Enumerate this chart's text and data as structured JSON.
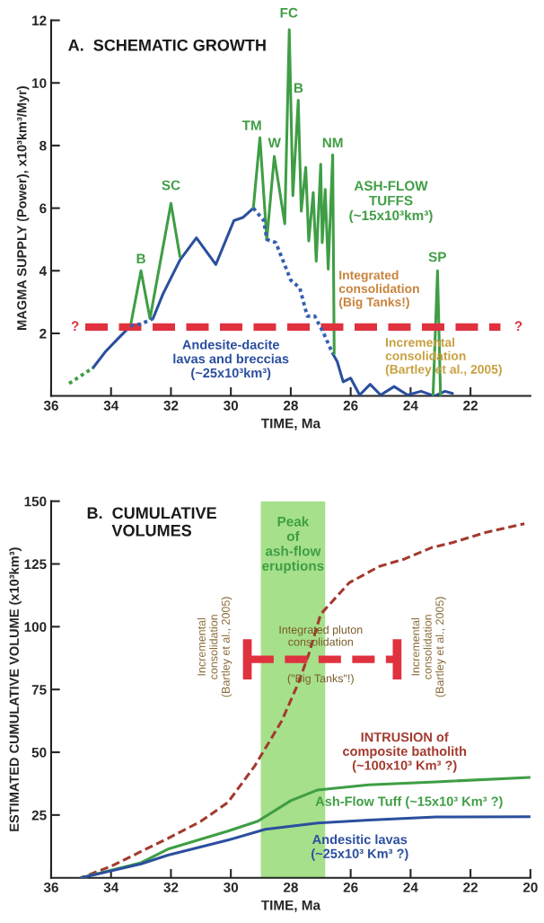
{
  "chart_data": [
    {
      "type": "line",
      "title": "A.  SCHEMATIC GROWTH",
      "xlabel": "TIME, Ma",
      "ylabel": "MAGMA SUPPLY (Power), x10³km³/Myr)",
      "xlim": [
        36,
        20
      ],
      "xticks": [
        36,
        34,
        32,
        30,
        28,
        26,
        24,
        22
      ],
      "ylim": [
        0,
        12
      ],
      "yticks": [
        2,
        4,
        6,
        8,
        10,
        12
      ],
      "series": [
        {
          "color": "#3f9e45",
          "line_style": "dotted",
          "x": [
            35.4,
            35.0,
            34.6
          ],
          "values": [
            0.4,
            0.65,
            0.9
          ]
        },
        {
          "color": "#2b4f9e",
          "line_style": "solid",
          "x": [
            34.6,
            34.2,
            33.8,
            33.35,
            33.0,
            32.6,
            32.27,
            31.7,
            31.15,
            30.5,
            29.9,
            29.6,
            29.25,
            28.0,
            26.6,
            26.45,
            26.25,
            26.0,
            25.7,
            25.35,
            25.0,
            24.55,
            24.1,
            23.65,
            23.2,
            22.85,
            22.6
          ],
          "values": [
            0.9,
            1.4,
            1.8,
            2.24,
            null,
            2.47,
            3.25,
            4.34,
            5.05,
            4.2,
            5.6,
            5.7,
            6.0,
            null,
            1.35,
            1.1,
            0.45,
            0.57,
            0.03,
            0.37,
            0.03,
            0.3,
            0.03,
            0.15,
            0,
            0.15,
            0.08
          ]
        },
        {
          "color": "#3560b0",
          "line_style": "dotted",
          "x": [
            33.35,
            33.0,
            32.6,
            31.0,
            29.25,
            28.9,
            28.8,
            28.5,
            28.0,
            27.7,
            27.45,
            27.2,
            26.9,
            26.6
          ],
          "values": [
            2.24,
            2.3,
            2.47,
            null,
            6.0,
            5.6,
            5.0,
            4.9,
            3.7,
            3.45,
            2.55,
            2.55,
            2.0,
            1.35
          ]
        },
        {
          "color": "#3f9e45",
          "line_style": "solid",
          "x": [
            33.35,
            33.0,
            32.7,
            32.0,
            31.7,
            30.5,
            29.25,
            29.03,
            28.8,
            28.55,
            28.2,
            28.05,
            27.93,
            27.75,
            27.65,
            27.5,
            27.4,
            27.25,
            27.15,
            27.0,
            26.95,
            26.85,
            26.75,
            26.6,
            26.55,
            25.0,
            23.25,
            23.1,
            23.0
          ],
          "values": [
            2.24,
            4.0,
            2.47,
            6.15,
            4.45,
            null,
            6.0,
            8.25,
            5.0,
            7.65,
            5.5,
            11.7,
            6.4,
            9.45,
            5.9,
            7.3,
            4.95,
            6.5,
            4.3,
            7.4,
            4.9,
            6.6,
            4.05,
            7.7,
            1.35,
            null,
            0,
            4.0,
            0
          ]
        },
        {
          "color": "#e0313f",
          "line_style": "dashed",
          "x": [
            34.9,
            21.0
          ],
          "values": [
            2.2,
            2.2
          ]
        }
      ],
      "annotations": [
        "B",
        "SC",
        "TM",
        "W",
        "FC",
        "B",
        "NM",
        "ASH-FLOW\nTUFFS\n(~15x10³km³)",
        "SP",
        "Integrated\nconsolidation\n(Big Tanks!)",
        "Incremental\nconsolidation\n(Bartley et al., 2005)",
        "Andesite-dacite\nlavas and breccias\n(~25x10³km³)",
        "?",
        "?"
      ]
    },
    {
      "type": "line",
      "title": "B.  CUMULATIVE\nVOLUMES",
      "xlabel": "TIME, Ma",
      "ylabel": "ESTIMATED CUMULATIVE VOLUME (x10³km³)",
      "xlim": [
        36,
        20
      ],
      "xticks": [
        36,
        34,
        32,
        30,
        28,
        26,
        24,
        22,
        20
      ],
      "ylim": [
        0,
        150
      ],
      "yticks": [
        25,
        50,
        75,
        100,
        125,
        150
      ],
      "bands": [
        {
          "axis": "x",
          "from": 29.0,
          "to": 26.85,
          "color": "#a6e08a",
          "label": "Peak\nof\nash-flow\neruptions"
        }
      ],
      "series": [
        {
          "color": "#a33a2e",
          "line_style": "dashed",
          "x": [
            35.0,
            34.0,
            32.1,
            31.0,
            30.1,
            29.2,
            28.3,
            27.75,
            27.4,
            27.0,
            26.05,
            25.05,
            24.2,
            23.3,
            22.6,
            21.5,
            20.2
          ],
          "values": [
            0,
            4.6,
            15.7,
            22.5,
            30,
            44.6,
            62.5,
            77.5,
            89,
            105,
            117.5,
            124,
            127,
            131.5,
            133.5,
            137.5,
            141
          ]
        },
        {
          "color": "#3f9e45",
          "line_style": "solid",
          "x": [
            35.0,
            33.0,
            32.1,
            30.1,
            29.1,
            28.0,
            27.1,
            25.4,
            23.15,
            20.0
          ],
          "values": [
            0,
            6,
            11.4,
            18.6,
            22.5,
            30.7,
            35,
            37,
            38.2,
            40
          ]
        },
        {
          "color": "#2b4f9e",
          "line_style": "solid",
          "x": [
            35.0,
            33.0,
            32.1,
            30.1,
            28.85,
            27.1,
            25.4,
            23.15,
            20.0
          ],
          "values": [
            0,
            5.5,
            9,
            15,
            19.3,
            21.8,
            23,
            24.2,
            24.3
          ]
        },
        {
          "color": "#e0313f",
          "line_style": "dashed",
          "x": [
            29.45,
            24.45
          ],
          "values": [
            87,
            87
          ],
          "errors": [
            8,
            8
          ]
        }
      ],
      "annotations": [
        "Incremental\nconsolidation\n(Bartley et al., 2005)",
        "Incremental\nconsolidation\n(Bartley et al., 2005)",
        "Integrated pluton\nconsolidation",
        "(\"Big Tanks\"!)",
        "INTRUSION of\ncomposite batholith\n(~100x10³ Km³ ?)",
        "Ash-Flow Tuff (~15x10³ Km³ ?)",
        "Andesitic lavas\n(~25x10³ Km³ ?)"
      ]
    }
  ]
}
